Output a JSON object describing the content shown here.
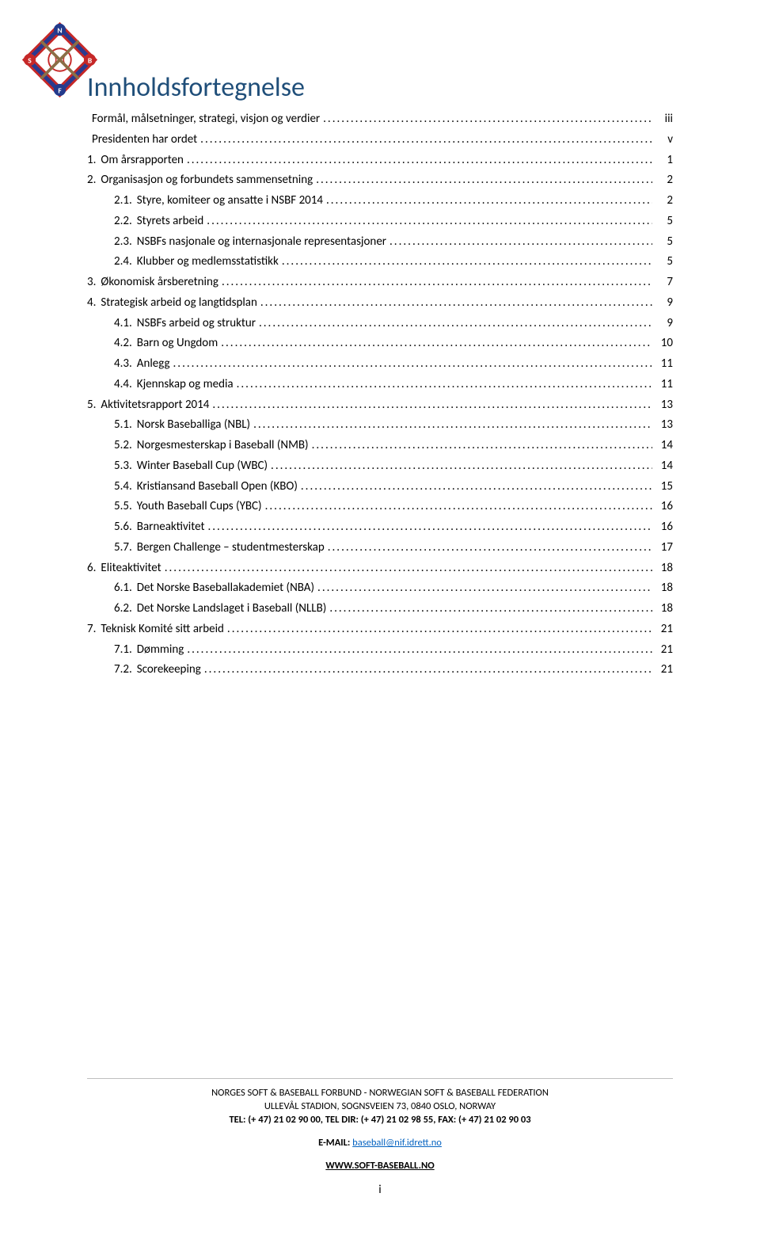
{
  "logo": {
    "outer_fill": "#2a3a8f",
    "inner_fill": "#ffffff",
    "accent_red": "#c62828",
    "accent_blue": "#233a8c",
    "letters": [
      "N",
      "S",
      "B",
      "F"
    ]
  },
  "title": "Innholdsfortegnelse",
  "toc": [
    {
      "level": 0,
      "num": "",
      "label": "Formål, målsetninger, strategi, visjon og verdier",
      "page": "iii"
    },
    {
      "level": 0,
      "num": "",
      "label": "Presidenten har ordet",
      "page": "v"
    },
    {
      "level": 0,
      "num": "1.",
      "label": "Om årsrapporten",
      "page": "1"
    },
    {
      "level": 0,
      "num": "2.",
      "label": "Organisasjon og forbundets sammensetning",
      "page": "2"
    },
    {
      "level": 1,
      "num": "2.1.",
      "label": "Styre, komiteer og ansatte i NSBF 2014",
      "page": "2"
    },
    {
      "level": 1,
      "num": "2.2.",
      "label": "Styrets arbeid",
      "page": "5"
    },
    {
      "level": 1,
      "num": "2.3.",
      "label": "NSBFs nasjonale og internasjonale representasjoner",
      "page": "5"
    },
    {
      "level": 1,
      "num": "2.4.",
      "label": "Klubber og medlemsstatistikk",
      "page": "5"
    },
    {
      "level": 0,
      "num": "3.",
      "label": "Økonomisk årsberetning",
      "page": "7"
    },
    {
      "level": 0,
      "num": "4.",
      "label": "Strategisk arbeid og langtidsplan",
      "page": "9"
    },
    {
      "level": 1,
      "num": "4.1.",
      "label": "NSBFs arbeid og struktur",
      "page": "9"
    },
    {
      "level": 1,
      "num": "4.2.",
      "label": "Barn og Ungdom",
      "page": "10"
    },
    {
      "level": 1,
      "num": "4.3.",
      "label": "Anlegg",
      "page": "11"
    },
    {
      "level": 1,
      "num": "4.4.",
      "label": "Kjennskap og media",
      "page": "11"
    },
    {
      "level": 0,
      "num": "5.",
      "label": "Aktivitetsrapport 2014",
      "page": "13"
    },
    {
      "level": 1,
      "num": "5.1.",
      "label": "Norsk Baseballiga (NBL)",
      "page": "13"
    },
    {
      "level": 1,
      "num": "5.2.",
      "label": "Norgesmesterskap i Baseball (NMB)",
      "page": "14"
    },
    {
      "level": 1,
      "num": "5.3.",
      "label": "Winter Baseball Cup (WBC)",
      "page": "14"
    },
    {
      "level": 1,
      "num": "5.4.",
      "label": "Kristiansand Baseball Open (KBO)",
      "page": "15"
    },
    {
      "level": 1,
      "num": "5.5.",
      "label": "Youth Baseball Cups (YBC)",
      "page": "16"
    },
    {
      "level": 1,
      "num": "5.6.",
      "label": "Barneaktivitet",
      "page": "16"
    },
    {
      "level": 1,
      "num": "5.7.",
      "label": "Bergen Challenge – studentmesterskap",
      "page": "17"
    },
    {
      "level": 0,
      "num": "6.",
      "label": "Eliteaktivitet",
      "page": "18"
    },
    {
      "level": 1,
      "num": "6.1.",
      "label": "Det Norske Baseballakademiet (NBA)",
      "page": "18"
    },
    {
      "level": 1,
      "num": "6.2.",
      "label": "Det Norske Landslaget i Baseball (NLLB)",
      "page": "18"
    },
    {
      "level": 0,
      "num": "7.",
      "label": "Teknisk Komité sitt arbeid",
      "page": "21"
    },
    {
      "level": 1,
      "num": "7.1.",
      "label": "Dømming",
      "page": "21"
    },
    {
      "level": 1,
      "num": "7.2.",
      "label": "Scorekeeping",
      "page": "21"
    }
  ],
  "footer": {
    "line1": "NORGES SOFT & BASEBALL FORBUND - NORWEGIAN SOFT & BASEBALL FEDERATION",
    "line2": "ULLEVÅL STADION, SOGNSVEIEN 73, 0840 OSLO, NORWAY",
    "line3": "TEL: (+ 47) 21 02 90 00, TEL DIR: (+ 47) 21 02 98 55, FAX: (+ 47) 21 02 90 03",
    "email_label": "E-MAIL: ",
    "email": "baseball@nif.idrett.no",
    "website": "WWW.SOFT-BASEBALL.NO",
    "page_number": "i"
  }
}
